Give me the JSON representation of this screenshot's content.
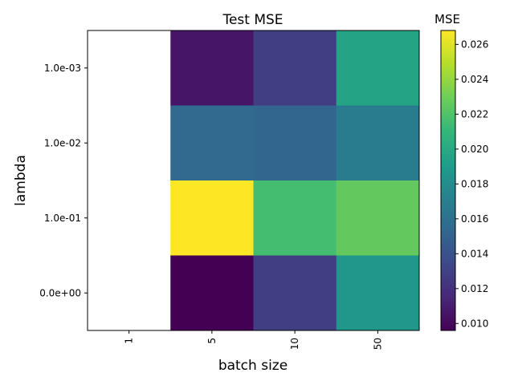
{
  "chart_data": {
    "type": "heatmap",
    "title": "Test MSE",
    "xlabel": "batch size",
    "ylabel": "lambda",
    "x_categories": [
      "1",
      "5",
      "10",
      "50"
    ],
    "y_categories": [
      "1.0e-03",
      "1.0e-02",
      "1.0e-01",
      "0.0e+00"
    ],
    "values": [
      [
        null,
        0.0106,
        0.0128,
        0.0196
      ],
      [
        null,
        0.0155,
        0.0152,
        0.0168
      ],
      [
        null,
        0.0268,
        0.0216,
        0.0226
      ],
      [
        null,
        0.0096,
        0.0128,
        0.0186
      ]
    ],
    "colorbar": {
      "label": "MSE",
      "min": 0.0096,
      "max": 0.0268,
      "ticks": [
        "0.010",
        "0.012",
        "0.014",
        "0.016",
        "0.018",
        "0.020",
        "0.022",
        "0.024",
        "0.026"
      ],
      "tick_values": [
        0.01,
        0.012,
        0.014,
        0.016,
        0.018,
        0.02,
        0.022,
        0.024,
        0.026
      ],
      "colormap": "viridis",
      "colormap_stops": [
        "#440154",
        "#482878",
        "#3e4989",
        "#31688e",
        "#26828e",
        "#1f9e89",
        "#35b779",
        "#6ece58",
        "#b5de2b",
        "#fde725"
      ]
    },
    "grid": false,
    "legend": "colorbar-right"
  }
}
